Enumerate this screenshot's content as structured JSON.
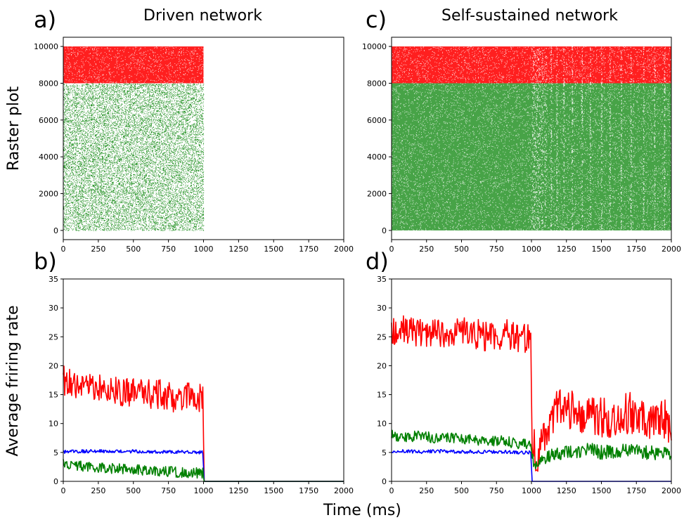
{
  "figure": {
    "column_titles": [
      "Driven network",
      "Self-sustained network"
    ],
    "panel_letters": [
      "a)",
      "b)",
      "c)",
      "d)"
    ],
    "row_labels": [
      "Raster plot",
      "Average friring rate"
    ],
    "shared_xlabel": "Time (ms)"
  },
  "colors": {
    "excitatory": "#008000",
    "inhibitory": "#ff0000",
    "blue_series": "#0000ff",
    "axes": "#000000",
    "background": "#ffffff"
  },
  "chart_data": [
    {
      "id": "a",
      "type": "scatter",
      "title": "Driven network",
      "xlabel": "",
      "ylabel": "Raster plot",
      "xlim": [
        0,
        2000
      ],
      "ylim": [
        -500,
        10500
      ],
      "xticks": [
        0,
        250,
        500,
        750,
        1000,
        1250,
        1500,
        1750,
        2000
      ],
      "yticks": [
        0,
        2000,
        4000,
        6000,
        8000,
        10000
      ],
      "series": [
        {
          "color": "#008000",
          "neuron_range": [
            0,
            8000
          ],
          "time_range": [
            0,
            1000
          ],
          "density": "sparse"
        },
        {
          "color": "#ff0000",
          "neuron_range": [
            8000,
            10000
          ],
          "time_range": [
            0,
            1000
          ],
          "density": "dense"
        }
      ]
    },
    {
      "id": "b",
      "type": "line",
      "xlabel": "",
      "ylabel": "Average friring rate",
      "xlim": [
        0,
        2000
      ],
      "ylim": [
        0,
        35
      ],
      "xticks": [
        0,
        250,
        500,
        750,
        1000,
        1250,
        1500,
        1750,
        2000
      ],
      "yticks": [
        0,
        5,
        10,
        15,
        20,
        25,
        30,
        35
      ],
      "x": [
        0,
        100,
        200,
        300,
        400,
        500,
        600,
        700,
        800,
        900,
        995,
        1005,
        1500,
        2000
      ],
      "series": [
        {
          "color": "#ff0000",
          "values": [
            17.5,
            17,
            16.5,
            16,
            15.5,
            15.5,
            15,
            15,
            14.5,
            14.5,
            14.5,
            0,
            0,
            0
          ]
        },
        {
          "color": "#0000ff",
          "values": [
            5.1,
            5.2,
            5.2,
            5.2,
            5.2,
            5.2,
            5.1,
            5.1,
            5.1,
            5.1,
            5.0,
            0,
            0,
            0
          ]
        },
        {
          "color": "#008000",
          "values": [
            3.0,
            2.7,
            2.5,
            2.3,
            2.2,
            2.0,
            1.9,
            1.7,
            1.6,
            1.5,
            1.4,
            0,
            0,
            0
          ]
        }
      ]
    },
    {
      "id": "c",
      "type": "scatter",
      "title": "Self-sustained network",
      "xlabel": "",
      "ylabel": "",
      "xlim": [
        0,
        2000
      ],
      "ylim": [
        -500,
        10500
      ],
      "xticks": [
        0,
        250,
        500,
        750,
        1000,
        1250,
        1500,
        1750,
        2000
      ],
      "yticks": [
        0,
        2000,
        4000,
        6000,
        8000,
        10000
      ],
      "series": [
        {
          "color": "#008000",
          "neuron_range": [
            0,
            8000
          ],
          "time_range": [
            0,
            2000
          ],
          "density": "dense"
        },
        {
          "color": "#ff0000",
          "neuron_range": [
            8000,
            10000
          ],
          "time_range": [
            0,
            2000
          ],
          "density": "dense"
        }
      ]
    },
    {
      "id": "d",
      "type": "line",
      "xlabel": "",
      "ylabel": "",
      "xlim": [
        0,
        2000
      ],
      "ylim": [
        0,
        35
      ],
      "xticks": [
        0,
        250,
        500,
        750,
        1000,
        1250,
        1500,
        1750,
        2000
      ],
      "yticks": [
        0,
        5,
        10,
        15,
        20,
        25,
        30,
        35
      ],
      "x": [
        0,
        100,
        200,
        300,
        400,
        500,
        600,
        700,
        800,
        900,
        995,
        1005,
        1050,
        1100,
        1200,
        1300,
        1400,
        1500,
        1600,
        1700,
        1800,
        1900,
        2000
      ],
      "series": [
        {
          "color": "#ff0000",
          "values": [
            26,
            26.5,
            25.5,
            26,
            25.5,
            26,
            25.5,
            25,
            25.5,
            25,
            24.5,
            6,
            5,
            9,
            13,
            12,
            11,
            11,
            11,
            12,
            11,
            11,
            10
          ]
        },
        {
          "color": "#0000ff",
          "values": [
            5.2,
            5.2,
            5.1,
            5.2,
            5.2,
            5.1,
            5.1,
            5.1,
            5.1,
            5.0,
            5.0,
            0,
            0,
            0,
            0,
            0,
            0,
            0,
            0,
            0,
            0,
            0,
            0
          ]
        },
        {
          "color": "#008000",
          "values": [
            8,
            7.5,
            8,
            7.5,
            7.5,
            7.5,
            7,
            7,
            7,
            6.5,
            6.5,
            4,
            3,
            4,
            5,
            5,
            5.5,
            5,
            5,
            5.5,
            5,
            5,
            4.5
          ]
        }
      ]
    }
  ]
}
